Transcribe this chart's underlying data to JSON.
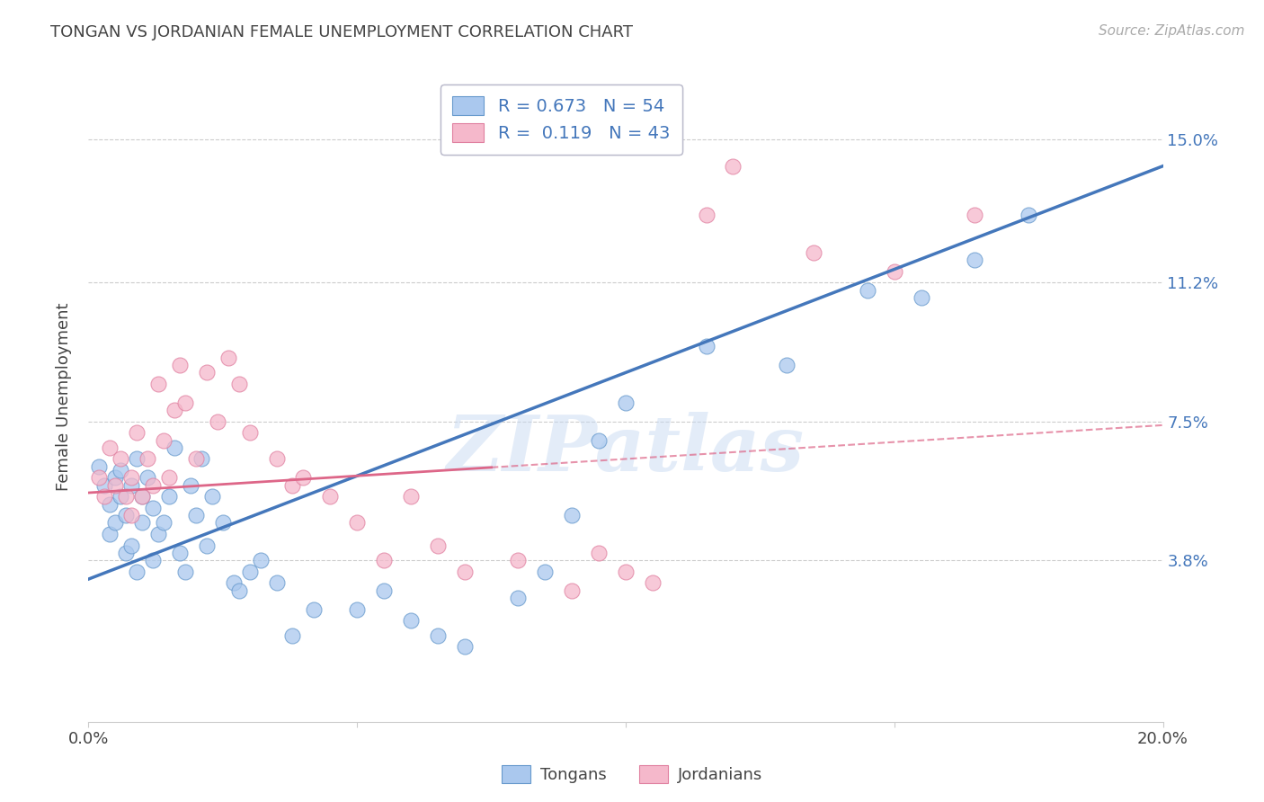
{
  "title": "TONGAN VS JORDANIAN FEMALE UNEMPLOYMENT CORRELATION CHART",
  "source": "Source: ZipAtlas.com",
  "ylabel": "Female Unemployment",
  "ytick_labels": [
    "3.8%",
    "7.5%",
    "11.2%",
    "15.0%"
  ],
  "ytick_values": [
    0.038,
    0.075,
    0.112,
    0.15
  ],
  "xlim": [
    0.0,
    0.2
  ],
  "ylim": [
    -0.005,
    0.168
  ],
  "tongan_fill_color": "#aac8ee",
  "jordanian_fill_color": "#f5b8cb",
  "tongan_edge_color": "#6699cc",
  "jordanian_edge_color": "#e080a0",
  "tongan_line_color": "#4477bb",
  "jordanian_line_color": "#dd6688",
  "r_tongan": "0.673",
  "n_tongan": "54",
  "r_jordanian": "0.119",
  "n_jordanian": "43",
  "legend_label_tongan": "Tongans",
  "legend_label_jordanian": "Jordanians",
  "watermark": "ZIPatlas",
  "bg_color": "#ffffff",
  "grid_color": "#cccccc",
  "text_color": "#444444",
  "right_tick_color": "#4477bb",
  "tongan_x": [
    0.002,
    0.003,
    0.004,
    0.004,
    0.005,
    0.005,
    0.006,
    0.006,
    0.007,
    0.007,
    0.008,
    0.008,
    0.009,
    0.009,
    0.01,
    0.01,
    0.011,
    0.012,
    0.012,
    0.013,
    0.014,
    0.015,
    0.016,
    0.017,
    0.018,
    0.019,
    0.02,
    0.021,
    0.022,
    0.023,
    0.025,
    0.027,
    0.028,
    0.03,
    0.032,
    0.035,
    0.038,
    0.042,
    0.05,
    0.055,
    0.06,
    0.065,
    0.07,
    0.08,
    0.085,
    0.09,
    0.095,
    0.1,
    0.115,
    0.13,
    0.145,
    0.155,
    0.165,
    0.175
  ],
  "tongan_y": [
    0.063,
    0.058,
    0.045,
    0.053,
    0.06,
    0.048,
    0.055,
    0.062,
    0.05,
    0.04,
    0.058,
    0.042,
    0.065,
    0.035,
    0.055,
    0.048,
    0.06,
    0.038,
    0.052,
    0.045,
    0.048,
    0.055,
    0.068,
    0.04,
    0.035,
    0.058,
    0.05,
    0.065,
    0.042,
    0.055,
    0.048,
    0.032,
    0.03,
    0.035,
    0.038,
    0.032,
    0.018,
    0.025,
    0.025,
    0.03,
    0.022,
    0.018,
    0.015,
    0.028,
    0.035,
    0.05,
    0.07,
    0.08,
    0.095,
    0.09,
    0.11,
    0.108,
    0.118,
    0.13
  ],
  "jordanian_x": [
    0.002,
    0.003,
    0.004,
    0.005,
    0.006,
    0.007,
    0.008,
    0.008,
    0.009,
    0.01,
    0.011,
    0.012,
    0.013,
    0.014,
    0.015,
    0.016,
    0.017,
    0.018,
    0.02,
    0.022,
    0.024,
    0.026,
    0.028,
    0.03,
    0.035,
    0.038,
    0.04,
    0.045,
    0.05,
    0.055,
    0.06,
    0.065,
    0.07,
    0.08,
    0.09,
    0.095,
    0.1,
    0.105,
    0.115,
    0.12,
    0.135,
    0.15,
    0.165
  ],
  "jordanian_y": [
    0.06,
    0.055,
    0.068,
    0.058,
    0.065,
    0.055,
    0.06,
    0.05,
    0.072,
    0.055,
    0.065,
    0.058,
    0.085,
    0.07,
    0.06,
    0.078,
    0.09,
    0.08,
    0.065,
    0.088,
    0.075,
    0.092,
    0.085,
    0.072,
    0.065,
    0.058,
    0.06,
    0.055,
    0.048,
    0.038,
    0.055,
    0.042,
    0.035,
    0.038,
    0.03,
    0.04,
    0.035,
    0.032,
    0.13,
    0.143,
    0.12,
    0.115,
    0.13
  ],
  "tongan_line_x0": 0.0,
  "tongan_line_y0": 0.033,
  "tongan_line_x1": 0.2,
  "tongan_line_y1": 0.143,
  "jordanian_line_x0": 0.0,
  "jordanian_line_y0": 0.056,
  "jordanian_line_x1": 0.2,
  "jordanian_line_y1": 0.074
}
